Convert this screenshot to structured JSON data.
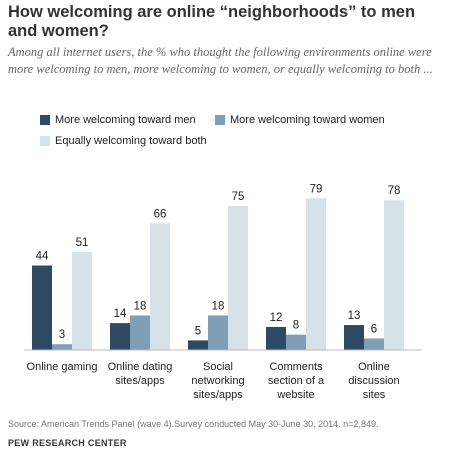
{
  "title": "How welcoming are online “neighborhoods” to men and women?",
  "subtitle": "Among all internet users, the % who thought the following environments online were more welcoming to men, more welcoming to women, or equally welcoming to both ...",
  "legend": [
    {
      "label": "More welcoming toward men",
      "color": "#2e4a62"
    },
    {
      "label": "More welcoming toward women",
      "color": "#7e9fb6"
    },
    {
      "label": "Equally welcoming toward both",
      "color": "#d6e1e8"
    }
  ],
  "source": "Source: American Trends Panel (wave 4).Survey conducted May 30-June 30, 2014. n=2,849.",
  "org": "PEW RESEARCH CENTER",
  "chart_data": {
    "type": "bar",
    "categories": [
      [
        "Online gaming"
      ],
      [
        "Online dating",
        "sites/apps"
      ],
      [
        "Social",
        "networking",
        "sites/apps"
      ],
      [
        "Comments",
        "section of a",
        "website"
      ],
      [
        "Online",
        "discussion",
        "sites"
      ]
    ],
    "series": [
      {
        "name": "More welcoming toward men",
        "values": [
          44,
          14,
          5,
          12,
          13
        ],
        "color": "#2e4a62"
      },
      {
        "name": "More welcoming toward women",
        "values": [
          3,
          18,
          18,
          8,
          6
        ],
        "color": "#7e9fb6"
      },
      {
        "name": "Equally welcoming toward both",
        "values": [
          51,
          66,
          75,
          79,
          78
        ],
        "color": "#d6e1e8"
      }
    ],
    "ylim": [
      0,
      100
    ],
    "xlabel": "",
    "ylabel": "",
    "legend_position": "top",
    "grid": false
  }
}
